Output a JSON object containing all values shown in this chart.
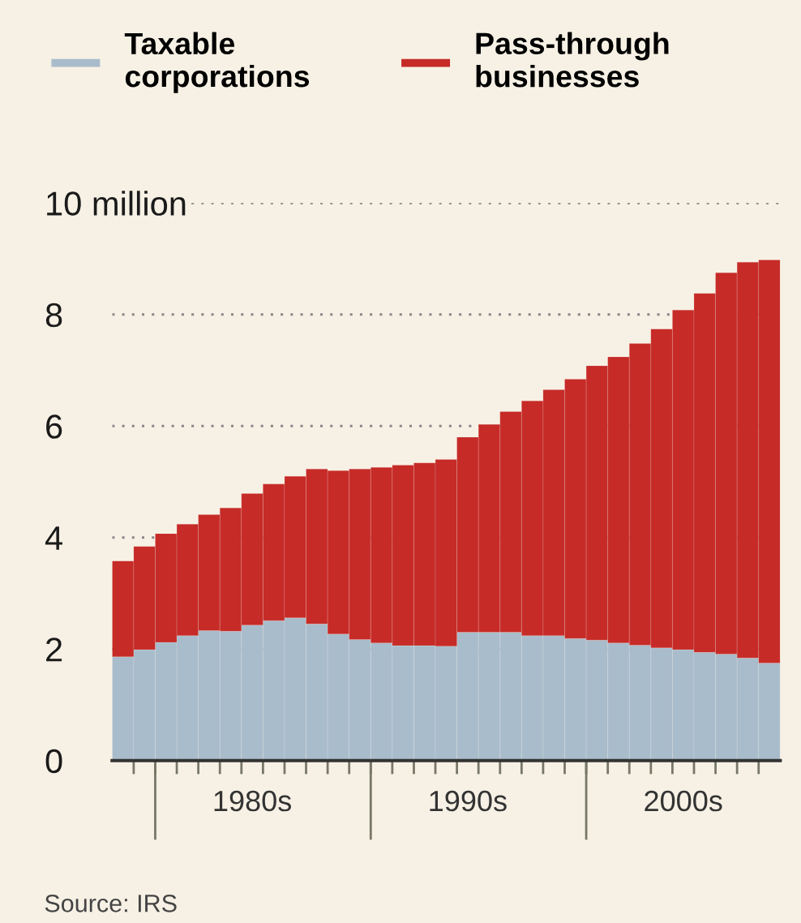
{
  "chart_data": {
    "type": "bar",
    "stacked": true,
    "categories": [
      null,
      null,
      null,
      null,
      null,
      null,
      "1980s",
      null,
      null,
      null,
      null,
      null,
      null,
      null,
      null,
      null,
      "1990s",
      null,
      null,
      null,
      null,
      null,
      null,
      null,
      null,
      null,
      "2000s",
      null,
      null,
      null,
      null
    ],
    "series": [
      {
        "name": "Taxable corporations",
        "color": "#a9bccb",
        "values": [
          1.86,
          1.99,
          2.12,
          2.24,
          2.33,
          2.32,
          2.43,
          2.51,
          2.56,
          2.45,
          2.27,
          2.17,
          2.11,
          2.06,
          2.06,
          2.05,
          2.3,
          2.3,
          2.3,
          2.24,
          2.24,
          2.19,
          2.16,
          2.11,
          2.07,
          2.02,
          1.99,
          1.94,
          1.91,
          1.84,
          1.75
        ]
      },
      {
        "name": "Pass-through businesses",
        "color": "#c62b27",
        "values": [
          1.72,
          1.85,
          1.95,
          2.0,
          2.08,
          2.21,
          2.36,
          2.45,
          2.54,
          2.78,
          2.93,
          3.06,
          3.15,
          3.24,
          3.28,
          3.35,
          3.5,
          3.73,
          3.96,
          4.21,
          4.41,
          4.65,
          4.92,
          5.13,
          5.41,
          5.72,
          6.09,
          6.44,
          6.84,
          7.1,
          7.23
        ]
      }
    ],
    "ylim": [
      0,
      10
    ],
    "yticks": [
      0,
      2,
      4,
      6,
      8,
      {
        "value": 10,
        "label": "10 million"
      }
    ],
    "grid": "y",
    "line_style": "dotted",
    "legend": "top",
    "annotations": [
      "Source: IRS"
    ]
  }
}
